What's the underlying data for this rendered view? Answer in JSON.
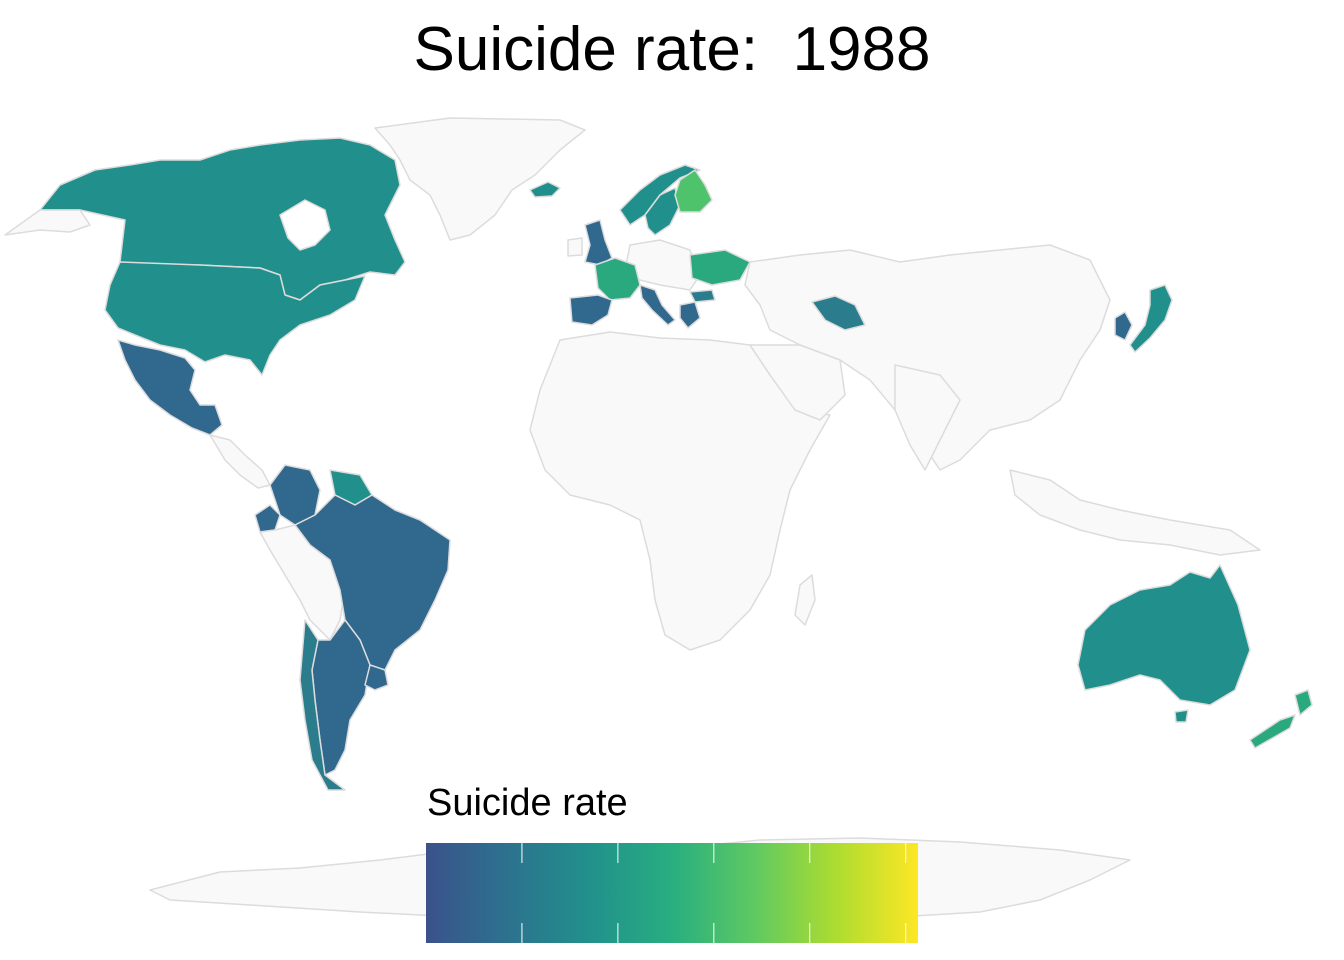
{
  "title": "Suicide rate:  1988",
  "legend": {
    "title": "Suicide rate",
    "scale": "viridis",
    "stops": [
      "#3b528b",
      "#2c728e",
      "#21918c",
      "#28ae80",
      "#5ec962",
      "#addc30",
      "#fde725"
    ]
  },
  "colors": {
    "no_data_fill": "#f9f9f9",
    "border": "#dcdcdc",
    "low": "#31688e",
    "mid_low": "#2b7d8e",
    "mid": "#21908c",
    "mid_high": "#2aa97f",
    "high": "#4ec36b"
  },
  "regions_with_data": [
    {
      "name": "Canada",
      "level": "mid"
    },
    {
      "name": "United States",
      "level": "mid"
    },
    {
      "name": "Mexico",
      "level": "low"
    },
    {
      "name": "Brazil",
      "level": "low"
    },
    {
      "name": "Colombia",
      "level": "low"
    },
    {
      "name": "Ecuador",
      "level": "low"
    },
    {
      "name": "Argentina",
      "level": "low"
    },
    {
      "name": "Chile",
      "level": "mid_low"
    },
    {
      "name": "Uruguay",
      "level": "low"
    },
    {
      "name": "Australia",
      "level": "mid"
    },
    {
      "name": "New Zealand",
      "level": "mid_high"
    },
    {
      "name": "Japan",
      "level": "mid"
    },
    {
      "name": "South Korea",
      "level": "low"
    },
    {
      "name": "Turkmenistan",
      "level": "mid_low"
    },
    {
      "name": "France",
      "level": "mid_high"
    },
    {
      "name": "Spain",
      "level": "low"
    },
    {
      "name": "United Kingdom",
      "level": "low"
    },
    {
      "name": "Italy",
      "level": "low"
    },
    {
      "name": "Finland",
      "level": "high"
    },
    {
      "name": "Sweden",
      "level": "mid"
    },
    {
      "name": "Norway",
      "level": "mid"
    },
    {
      "name": "Iceland",
      "level": "mid"
    },
    {
      "name": "Ukraine",
      "level": "mid_high"
    },
    {
      "name": "Bulgaria",
      "level": "mid_low"
    },
    {
      "name": "Greece",
      "level": "low"
    }
  ]
}
